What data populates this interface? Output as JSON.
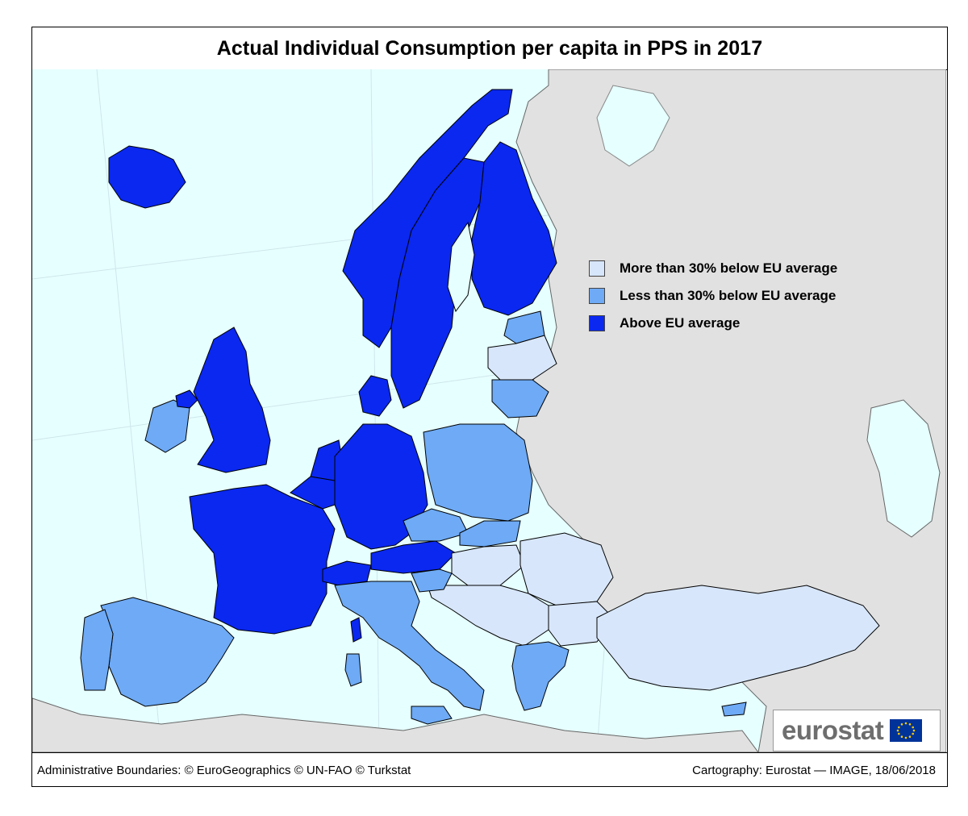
{
  "title": "Actual Individual Consumption per capita in PPS in 2017",
  "legend": {
    "items": [
      {
        "label": "More than 30% below EU average",
        "color": "#d7e6fa"
      },
      {
        "label": "Less than 30% below EU average",
        "color": "#6eaaf5"
      },
      {
        "label": "Above EU average",
        "color": "#0a28f0"
      }
    ]
  },
  "colors": {
    "sea": "#e6ffff",
    "non_eu_land": "#e1e1e1",
    "low": "#d7e6fa",
    "mid": "#6eaaf5",
    "high": "#0a28f0",
    "border": "#000000"
  },
  "footer": {
    "source": "Administrative Boundaries: © EuroGeographics © UN-FAO © Turkstat",
    "credit": "Cartography: Eurostat — IMAGE, 18/06/2018"
  },
  "logo": {
    "text": "eurostat",
    "icon": "eu-flag-icon"
  }
}
